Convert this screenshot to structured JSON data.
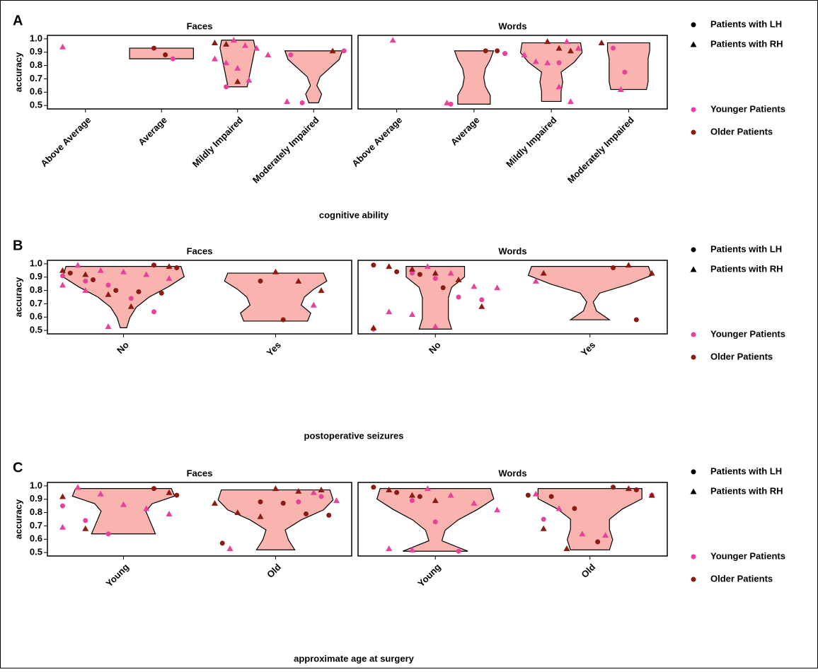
{
  "chart_data": [
    {
      "type": "violin",
      "label": "A",
      "x_label": "cognitive ability",
      "y_label": "accuracy",
      "ylim": [
        0.49,
        1.01
      ],
      "yticks": [
        0.5,
        0.6,
        0.7,
        0.8,
        0.9,
        {
          "value": 1,
          "label": "1.0"
        }
      ],
      "legend": {
        "shapes": [
          {
            "name": "Patients with LH",
            "shape": "circle"
          },
          {
            "name": "Patients with RH",
            "shape": "triangle"
          }
        ],
        "colors": [
          {
            "name": "Younger Patients",
            "color": "#e8419a"
          },
          {
            "name": "Older Patients",
            "color": "#8b1a12"
          }
        ]
      },
      "violin_color": "#f9b4b0",
      "facets": [
        {
          "title": "Faces",
          "categories": [
            "Above Average",
            "Average",
            "Mildly Impaired",
            "Moderately Impaired"
          ],
          "violins": [
            null,
            {
              "range": [
                0.85,
                0.93
              ],
              "widths": [
                1,
                1,
                1,
                1,
                1,
                1,
                1
              ]
            },
            {
              "range": [
                0.64,
                0.99
              ],
              "widths": [
                0.3,
                0.35,
                0.4,
                0.45,
                0.5,
                0.55,
                0.5
              ]
            },
            {
              "range": [
                0.52,
                0.91
              ],
              "widths": [
                0.15,
                0.25,
                0.1,
                0.2,
                0.5,
                0.8,
                0.9
              ]
            }
          ],
          "points": [
            [
              [
                [],
                []
              ],
              [
                [
                  0.94
                ],
                []
              ]
            ],
            [
              [
                [
                  0.85
                ],
                [
                  0.93,
                  0.88
                ]
              ],
              [
                [],
                []
              ]
            ],
            [
              [
                [
                  0.64
                ],
                []
              ],
              [
                [
                  0.99,
                  0.95,
                  0.93,
                  0.88,
                  0.85,
                  0.82,
                  0.78,
                  0.69
                ],
                [
                  0.97,
                  0.96,
                  0.68
                ]
              ]
            ],
            [
              [
                [
                  0.91,
                  0.88,
                  0.52
                ],
                []
              ],
              [
                [
                  0.53
                ],
                [
                  0.91
                ]
              ]
            ]
          ]
        },
        {
          "title": "Words",
          "categories": [
            "Above Average",
            "Average",
            "Mildly Impaired",
            "Moderately Impaired"
          ],
          "violins": [
            null,
            {
              "range": [
                0.51,
                0.91
              ],
              "widths": [
                0.5,
                0.5,
                0.35,
                0.3,
                0.35,
                0.5,
                0.6
              ]
            },
            {
              "range": [
                0.53,
                0.97
              ],
              "widths": [
                0.3,
                0.3,
                0.35,
                0.3,
                0.7,
                0.95,
                0.9
              ]
            },
            {
              "range": [
                0.62,
                0.97
              ],
              "widths": [
                0.55,
                0.6,
                0.6,
                0.6,
                0.6,
                0.65,
                0.65
              ]
            }
          ],
          "points": [
            [
              [
                [],
                []
              ],
              [
                [
                  0.99
                ],
                []
              ]
            ],
            [
              [
                [
                  0.89,
                  0.51
                ],
                [
                  0.91,
                  0.91
                ]
              ],
              [
                [
                  0.52
                ],
                []
              ]
            ],
            [
              [
                [
                  0.82
                ],
                []
              ],
              [
                [
                  0.98,
                  0.93,
                  0.88,
                  0.83,
                  0.82,
                  0.64,
                  0.53
                ],
                [
                  0.98,
                  0.93,
                  0.91
                ]
              ]
            ],
            [
              [
                [
                  0.93,
                  0.75
                ],
                []
              ],
              [
                [
                  0.62
                ],
                [
                  0.97
                ]
              ]
            ]
          ]
        }
      ]
    },
    {
      "type": "violin",
      "label": "B",
      "x_label": "postoperative seizures",
      "y_label": "accuracy",
      "ylim": [
        0.49,
        1.01
      ],
      "yticks": [
        0.5,
        0.6,
        0.7,
        0.8,
        0.9,
        {
          "value": 1,
          "label": "1.0"
        }
      ],
      "legend": {
        "shapes": [
          {
            "name": "Patients with LH",
            "shape": "circle"
          },
          {
            "name": "Patients with RH",
            "shape": "triangle"
          }
        ],
        "colors": [
          {
            "name": "Younger Patients",
            "color": "#e8419a"
          },
          {
            "name": "Older Patients",
            "color": "#8b1a12"
          }
        ]
      },
      "violin_color": "#f9b4b0",
      "facets": [
        {
          "title": "Faces",
          "categories": [
            "No",
            "Yes"
          ],
          "violins": [
            {
              "range": [
                0.52,
                0.98
              ],
              "widths": [
                0.05,
                0.1,
                0.2,
                0.4,
                0.7,
                0.95,
                0.9
              ]
            },
            {
              "range": [
                0.57,
                0.93
              ],
              "widths": [
                0.5,
                0.55,
                0.4,
                0.45,
                0.6,
                0.8,
                0.75
              ]
            }
          ],
          "points": [
            [
              [
                [
                  0.91,
                  0.87,
                  0.84,
                  0.74,
                  0.64
                ],
                [
                  0.99,
                  0.97,
                  0.93,
                  0.88,
                  0.8,
                  0.79,
                  0.78
                ]
              ],
              [
                [
                  0.99,
                  0.95,
                  0.94,
                  0.92,
                  0.89,
                  0.84,
                  0.8,
                  0.53
                ],
                [
                  0.98,
                  0.95,
                  0.92,
                  0.77,
                  0.68
                ]
              ]
            ],
            [
              [
                [],
                [
                  0.87,
                  0.58
                ]
              ],
              [
                [
                  0.69
                ],
                [
                  0.94,
                  0.87,
                  0.8
                ]
              ]
            ]
          ]
        },
        {
          "title": "Words",
          "categories": [
            "No",
            "Yes"
          ],
          "violins": [
            {
              "range": [
                0.51,
                0.98
              ],
              "widths": [
                0.25,
                0.2,
                0.2,
                0.2,
                0.25,
                0.45,
                0.45
              ]
            },
            {
              "range": [
                0.58,
                0.98
              ],
              "widths": [
                0.3,
                0.1,
                0.05,
                0.15,
                0.6,
                0.95,
                0.9
              ]
            }
          ],
          "points": [
            [
              [
                [
                  0.93,
                  0.89,
                  0.75,
                  0.73,
                  0.51
                ],
                [
                  0.99,
                  0.94,
                  0.92,
                  0.82
                ]
              ],
              [
                [
                  0.98,
                  0.93,
                  0.83,
                  0.82,
                  0.64,
                  0.62,
                  0.53
                ],
                [
                  0.98,
                  0.96,
                  0.93,
                  0.88,
                  0.68,
                  0.52
                ]
              ]
            ],
            [
              [
                [],
                [
                  0.97,
                  0.58
                ]
              ],
              [
                [
                  0.87
                ],
                [
                  0.99,
                  0.93,
                  0.93
                ]
              ]
            ]
          ]
        }
      ]
    },
    {
      "type": "violin",
      "label": "C",
      "x_label": "approximate age at surgery",
      "y_label": "accuracy",
      "ylim": [
        0.49,
        1.01
      ],
      "yticks": [
        0.5,
        0.6,
        0.7,
        0.8,
        0.9,
        {
          "value": 1,
          "label": "1.0"
        }
      ],
      "legend": {
        "shapes": [
          {
            "name": "Patients with LH",
            "shape": "circle"
          },
          {
            "name": "Patients with RH",
            "shape": "triangle"
          }
        ],
        "colors": [
          {
            "name": "Younger Patients",
            "color": "#e8419a"
          },
          {
            "name": "Older Patients",
            "color": "#8b1a12"
          }
        ]
      },
      "violin_color": "#f9b4b0",
      "facets": [
        {
          "title": "Faces",
          "categories": [
            "Young",
            "Old"
          ],
          "violins": [
            {
              "range": [
                0.64,
                0.98
              ],
              "widths": [
                0.5,
                0.45,
                0.4,
                0.35,
                0.45,
                0.8,
                0.75
              ]
            },
            {
              "range": [
                0.52,
                0.97
              ],
              "widths": [
                0.3,
                0.2,
                0.15,
                0.4,
                0.75,
                0.9,
                0.85
              ]
            }
          ],
          "points": [
            [
              [
                [
                  0.85,
                  0.74,
                  0.64
                ],
                [
                  0.98,
                  0.93
                ]
              ],
              [
                [
                  0.99,
                  0.94,
                  0.86,
                  0.83,
                  0.79,
                  0.69
                ],
                [
                  0.95,
                  0.92,
                  0.68
                ]
              ]
            ],
            [
              [
                [
                  0.88,
                  0.92
                ],
                [
                  0.88,
                  0.87,
                  0.79,
                  0.78,
                  0.57
                ]
              ],
              [
                [
                  0.95,
                  0.89,
                  0.53
                ],
                [
                  0.98,
                  0.96,
                  0.97,
                  0.87,
                  0.8,
                  0.77
                ]
              ]
            ]
          ]
        },
        {
          "title": "Words",
          "categories": [
            "Young",
            "Old"
          ],
          "violins": [
            {
              "range": [
                0.51,
                0.98
              ],
              "widths": [
                0.5,
                0.1,
                0.15,
                0.35,
                0.65,
                0.9,
                0.85
              ]
            },
            {
              "range": [
                0.52,
                0.98
              ],
              "widths": [
                0.3,
                0.35,
                0.3,
                0.3,
                0.5,
                0.8,
                0.8
              ]
            }
          ],
          "points": [
            [
              [
                [
                  0.89,
                  0.73,
                  0.51
                ],
                [
                  0.99,
                  0.95,
                  0.92
                ]
              ],
              [
                [
                  0.98,
                  0.93,
                  0.87,
                  0.82,
                  0.53,
                  0.52
                ],
                [
                  0.97,
                  0.93,
                  0.89
                ]
              ]
            ],
            [
              [
                [
                  0.93,
                  0.75
                ],
                [
                  0.99,
                  0.97,
                  0.93,
                  0.92,
                  0.83,
                  0.58
                ]
              ],
              [
                [
                  0.94,
                  0.83,
                  0.64,
                  0.63
                ],
                [
                  0.98,
                  0.93,
                  0.68,
                  0.53
                ]
              ]
            ]
          ]
        }
      ]
    }
  ]
}
